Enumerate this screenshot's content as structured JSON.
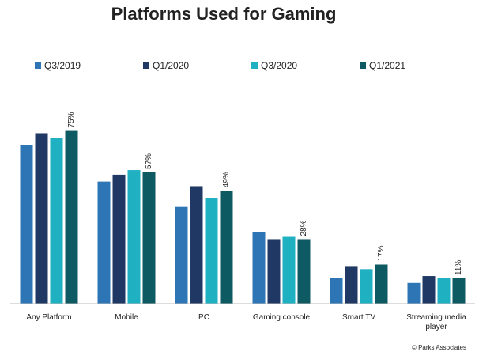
{
  "chart_data": {
    "type": "bar",
    "title": "Platforms Used for Gaming",
    "categories": [
      "Any Platform",
      "Mobile",
      "PC",
      "Gaming console",
      "Smart TV",
      "Streaming media player"
    ],
    "series": [
      {
        "name": "Q3/2019",
        "color": "#2e75b6",
        "values": [
          69,
          53,
          42,
          31,
          11,
          9
        ]
      },
      {
        "name": "Q1/2020",
        "color": "#1f3864",
        "values": [
          74,
          56,
          51,
          28,
          16,
          12
        ]
      },
      {
        "name": "Q3/2020",
        "color": "#1fb1c1",
        "values": [
          72,
          58,
          46,
          29,
          15,
          11
        ]
      },
      {
        "name": "Q1/2021",
        "color": "#0d5a63",
        "values": [
          75,
          57,
          49,
          28,
          17,
          11
        ],
        "value_labels": [
          "75%",
          "57%",
          "49%",
          "28%",
          "17%",
          "11%"
        ]
      }
    ],
    "ylim": [
      0,
      80
    ],
    "source": "© Parks Associates"
  }
}
